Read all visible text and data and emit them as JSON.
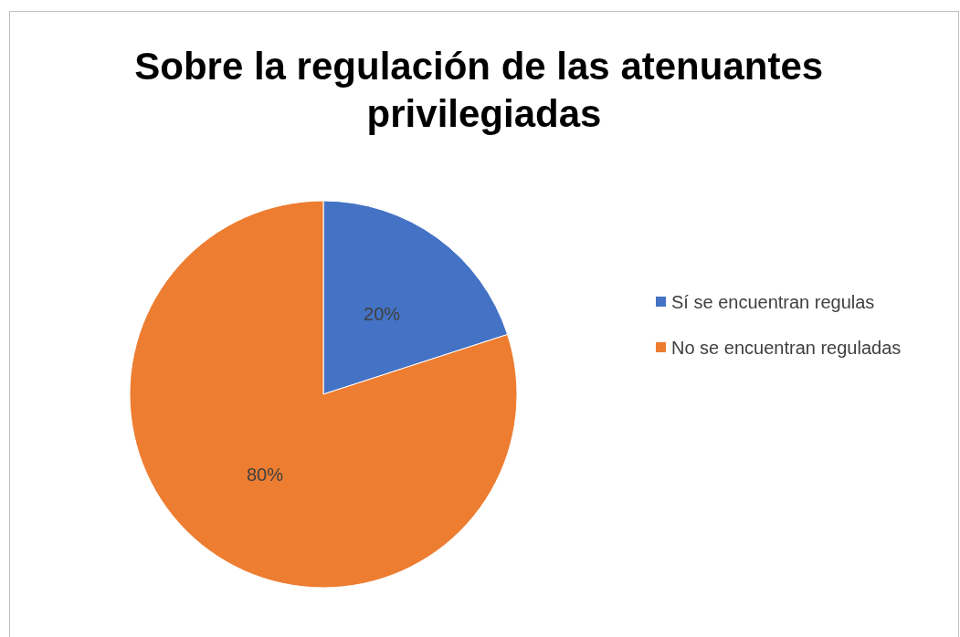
{
  "chart_data": {
    "type": "pie",
    "title": "Sobre la regulación de las atenuantes privilegiadas",
    "categories": [
      "Sí se encuentran regulas",
      "No se encuentran reguladas"
    ],
    "values": [
      20,
      80
    ],
    "colors": [
      "#4472c4",
      "#ed7d31"
    ],
    "value_labels": [
      "20%",
      "80%"
    ],
    "legend": "right"
  }
}
